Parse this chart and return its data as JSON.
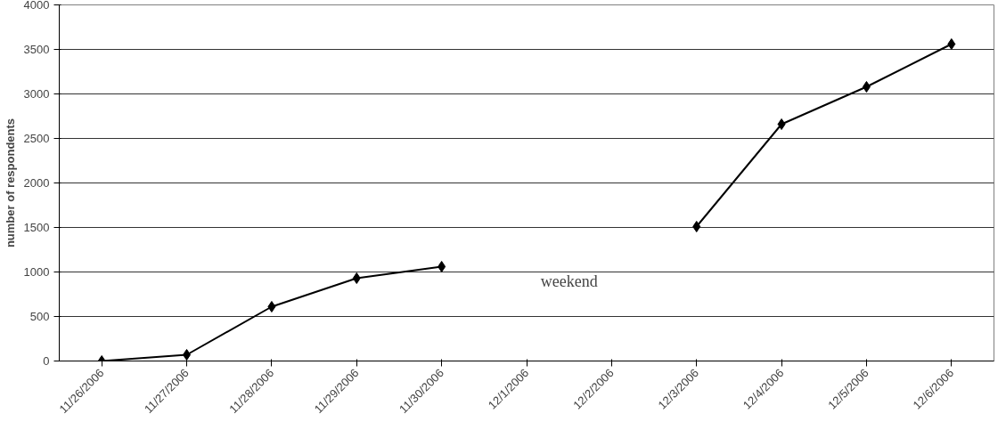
{
  "chart_data": {
    "type": "line",
    "ylabel": "number of respondents",
    "categories": [
      "11/26/2006",
      "11/27/2006",
      "11/28/2006",
      "11/29/2006",
      "11/30/2006",
      "12/1/2006",
      "12/2/2006",
      "12/3/2006",
      "12/4/2006",
      "12/5/2006",
      "12/6/2006"
    ],
    "series": [
      {
        "color": "#000000",
        "values": [
          0,
          70,
          610,
          930,
          1060,
          null,
          null,
          1510,
          2660,
          3080,
          3560
        ]
      }
    ],
    "ylim": [
      0,
      4000
    ],
    "yticks": [
      0,
      500,
      1000,
      1500,
      2000,
      2500,
      3000,
      3500,
      4000
    ],
    "annotations": [
      "weekend"
    ],
    "grid": "y",
    "marker": "diamond",
    "line_style": "solid"
  }
}
